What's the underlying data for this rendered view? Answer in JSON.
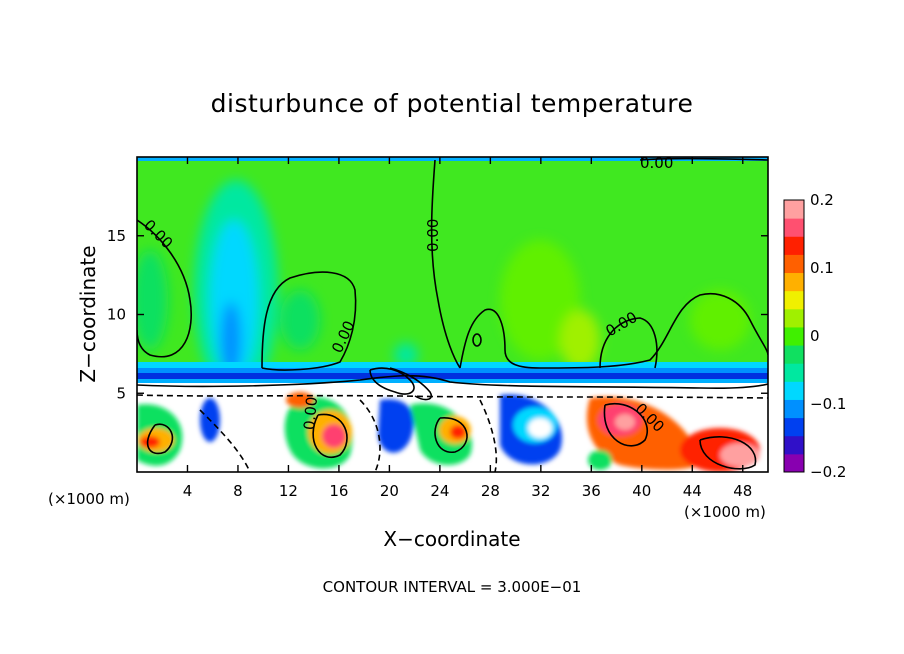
{
  "chart_data": {
    "type": "heatmap",
    "title": "disturbunce of potential temperature",
    "xlabel": "X−coordinate",
    "ylabel": "Z−coordinate",
    "x_unit": "(×1000 m)",
    "x_unit_right": "(×1000 m)",
    "xlim": [
      0,
      50
    ],
    "ylim": [
      0,
      20
    ],
    "xticks": [
      4,
      8,
      12,
      16,
      20,
      24,
      28,
      32,
      36,
      40,
      44,
      48
    ],
    "yticks": [
      5,
      10,
      15
    ],
    "colorbar": {
      "range": [
        -0.2,
        0.2
      ],
      "ticks": [
        0.2,
        0.1,
        0,
        -0.1,
        -0.2
      ],
      "tick_labels": [
        "0.2",
        "0.1",
        "0",
        "−0.1",
        "−0.2"
      ]
    },
    "contour_interval_text": "CONTOUR INTERVAL = 3.000E−01",
    "contour_labels": [
      "0.00",
      "0.00",
      "0.00",
      "0.00",
      "0.00",
      "0.00",
      "0.00"
    ],
    "mixed_layer_top_km": 6,
    "colormap": [
      "#8800b0",
      "#3010c8",
      "#0040f0",
      "#0090ff",
      "#00d8ff",
      "#00e8a0",
      "#10e060",
      "#40f000",
      "#a0f000",
      "#f0f000",
      "#ffb000",
      "#ff6000",
      "#ff2000",
      "#ff5070",
      "#ffa0a0"
    ]
  }
}
